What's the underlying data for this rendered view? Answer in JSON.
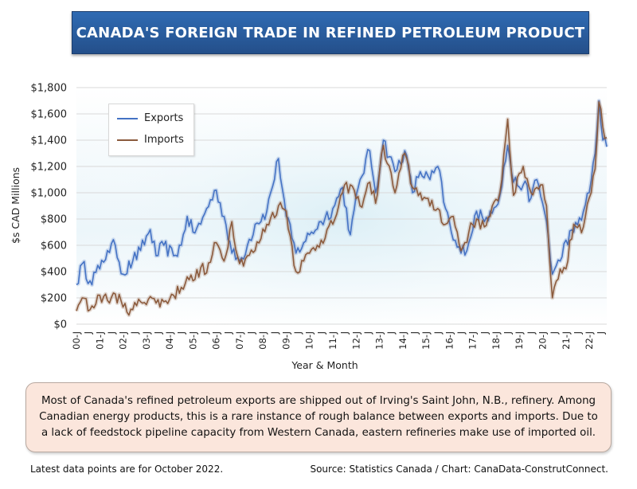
{
  "header": {
    "title": "CANADA'S FOREIGN TRADE IN REFINED PETROLEUM PRODUCT"
  },
  "note": "Most of Canada's refined petroleum exports are shipped out of Irving's Saint John, N.B., refinery. Among Canadian energy products, this is a rare instance of rough balance between exports and imports. Due to a lack of feedstock pipeline capacity from Western Canada, eastern refineries make use of imported oil.",
  "footer": {
    "left": "Latest data points are for October 2022.",
    "right": "Source: Statistics Canada / Chart: CanaData-ConstrutConnect."
  },
  "chart_data": {
    "type": "line",
    "title": "CANADA'S FOREIGN TRADE IN REFINED PETROLEUM PRODUCT",
    "xlabel": "Year & Month",
    "ylabel": "$s CAD Millions",
    "ylim": [
      0,
      1800
    ],
    "yticks": [
      0,
      200,
      400,
      600,
      800,
      1000,
      1200,
      1400,
      1600,
      1800
    ],
    "ytick_labels": [
      "$0",
      "$200",
      "$400",
      "$600",
      "$800",
      "$1,000",
      "$1,200",
      "$1,400",
      "$1,600",
      "$1,800"
    ],
    "xtick_labels": [
      "00-J",
      "J",
      "01-J",
      "J",
      "02-J",
      "J",
      "03-J",
      "J",
      "04-J",
      "J",
      "05-J",
      "J",
      "06-J",
      "J",
      "07-J",
      "J",
      "08-J",
      "J",
      "09-J",
      "J",
      "10-J",
      "J",
      "11-J",
      "J",
      "12-J",
      "J",
      "13-J",
      "J",
      "14-J",
      "J",
      "15-J",
      "J",
      "16-J",
      "J",
      "17-J",
      "J",
      "18-J",
      "J",
      "19-J",
      "J",
      "20-J",
      "J",
      "21-J",
      "J",
      "22-J",
      "J"
    ],
    "x_start": "2000-01",
    "x_end": "2022-10",
    "grid": true,
    "legend": "top-left",
    "series": [
      {
        "name": "Exports",
        "color": "#4472c4",
        "knots": [
          [
            "2000-01",
            300
          ],
          [
            "2000-04",
            460
          ],
          [
            "2000-08",
            330
          ],
          [
            "2001-01",
            420
          ],
          [
            "2001-05",
            560
          ],
          [
            "2001-09",
            600
          ],
          [
            "2002-01",
            380
          ],
          [
            "2002-06",
            480
          ],
          [
            "2002-10",
            560
          ],
          [
            "2003-03",
            720
          ],
          [
            "2003-06",
            520
          ],
          [
            "2003-10",
            600
          ],
          [
            "2004-03",
            520
          ],
          [
            "2004-07",
            600
          ],
          [
            "2004-10",
            820
          ],
          [
            "2005-01",
            700
          ],
          [
            "2005-05",
            760
          ],
          [
            "2005-08",
            880
          ],
          [
            "2006-01",
            1020
          ],
          [
            "2006-05",
            820
          ],
          [
            "2006-09",
            540
          ],
          [
            "2007-01",
            480
          ],
          [
            "2007-05",
            600
          ],
          [
            "2007-09",
            760
          ],
          [
            "2008-03",
            860
          ],
          [
            "2008-09",
            1260
          ],
          [
            "2009-01",
            820
          ],
          [
            "2009-06",
            540
          ],
          [
            "2009-10",
            620
          ],
          [
            "2010-01",
            680
          ],
          [
            "2010-07",
            780
          ],
          [
            "2011-01",
            880
          ],
          [
            "2011-06",
            1040
          ],
          [
            "2011-10",
            680
          ],
          [
            "2012-03",
            1100
          ],
          [
            "2012-08",
            1320
          ],
          [
            "2012-11",
            1000
          ],
          [
            "2013-03",
            1400
          ],
          [
            "2013-09",
            1160
          ],
          [
            "2014-02",
            1320
          ],
          [
            "2014-06",
            1000
          ],
          [
            "2014-10",
            1160
          ],
          [
            "2015-03",
            1100
          ],
          [
            "2015-07",
            1200
          ],
          [
            "2015-11",
            880
          ],
          [
            "2016-03",
            640
          ],
          [
            "2016-07",
            540
          ],
          [
            "2016-11",
            620
          ],
          [
            "2017-03",
            860
          ],
          [
            "2017-07",
            780
          ],
          [
            "2017-10",
            860
          ],
          [
            "2018-03",
            980
          ],
          [
            "2018-07",
            1360
          ],
          [
            "2018-10",
            1080
          ],
          [
            "2019-03",
            1060
          ],
          [
            "2019-07",
            960
          ],
          [
            "2019-10",
            1100
          ],
          [
            "2020-01",
            920
          ],
          [
            "2020-03",
            780
          ],
          [
            "2020-06",
            380
          ],
          [
            "2020-10",
            480
          ],
          [
            "2021-01",
            640
          ],
          [
            "2021-05",
            700
          ],
          [
            "2021-10",
            860
          ],
          [
            "2022-01",
            1000
          ],
          [
            "2022-04",
            1300
          ],
          [
            "2022-06",
            1700
          ],
          [
            "2022-08",
            1400
          ],
          [
            "2022-10",
            1350
          ]
        ]
      },
      {
        "name": "Imports",
        "color": "#8b5a3c",
        "knots": [
          [
            "2000-01",
            100
          ],
          [
            "2000-04",
            200
          ],
          [
            "2000-08",
            110
          ],
          [
            "2001-01",
            220
          ],
          [
            "2001-05",
            180
          ],
          [
            "2001-09",
            230
          ],
          [
            "2002-01",
            130
          ],
          [
            "2002-06",
            110
          ],
          [
            "2002-10",
            170
          ],
          [
            "2003-03",
            210
          ],
          [
            "2003-06",
            160
          ],
          [
            "2003-10",
            170
          ],
          [
            "2004-03",
            220
          ],
          [
            "2004-07",
            280
          ],
          [
            "2004-10",
            360
          ],
          [
            "2005-01",
            330
          ],
          [
            "2005-05",
            430
          ],
          [
            "2005-08",
            390
          ],
          [
            "2006-01",
            620
          ],
          [
            "2006-05",
            480
          ],
          [
            "2006-09",
            780
          ],
          [
            "2007-01",
            460
          ],
          [
            "2007-05",
            520
          ],
          [
            "2007-09",
            560
          ],
          [
            "2008-03",
            760
          ],
          [
            "2008-09",
            900
          ],
          [
            "2009-01",
            860
          ],
          [
            "2009-06",
            400
          ],
          [
            "2009-10",
            480
          ],
          [
            "2010-01",
            540
          ],
          [
            "2010-07",
            640
          ],
          [
            "2011-01",
            760
          ],
          [
            "2011-06",
            1000
          ],
          [
            "2011-10",
            1060
          ],
          [
            "2012-03",
            900
          ],
          [
            "2012-08",
            1080
          ],
          [
            "2012-11",
            920
          ],
          [
            "2013-03",
            1360
          ],
          [
            "2013-09",
            1000
          ],
          [
            "2014-02",
            1300
          ],
          [
            "2014-06",
            1040
          ],
          [
            "2014-10",
            1000
          ],
          [
            "2015-03",
            900
          ],
          [
            "2015-07",
            880
          ],
          [
            "2015-11",
            760
          ],
          [
            "2016-03",
            820
          ],
          [
            "2016-07",
            560
          ],
          [
            "2016-11",
            700
          ],
          [
            "2017-03",
            800
          ],
          [
            "2017-07",
            740
          ],
          [
            "2017-10",
            820
          ],
          [
            "2018-03",
            1000
          ],
          [
            "2018-07",
            1560
          ],
          [
            "2018-10",
            980
          ],
          [
            "2019-03",
            1200
          ],
          [
            "2019-07",
            1000
          ],
          [
            "2019-10",
            1040
          ],
          [
            "2020-01",
            1060
          ],
          [
            "2020-03",
            900
          ],
          [
            "2020-06",
            200
          ],
          [
            "2020-10",
            420
          ],
          [
            "2021-01",
            420
          ],
          [
            "2021-05",
            760
          ],
          [
            "2021-10",
            740
          ],
          [
            "2022-01",
            960
          ],
          [
            "2022-04",
            1180
          ],
          [
            "2022-06",
            1690
          ],
          [
            "2022-08",
            1500
          ],
          [
            "2022-10",
            1420
          ]
        ]
      }
    ]
  }
}
